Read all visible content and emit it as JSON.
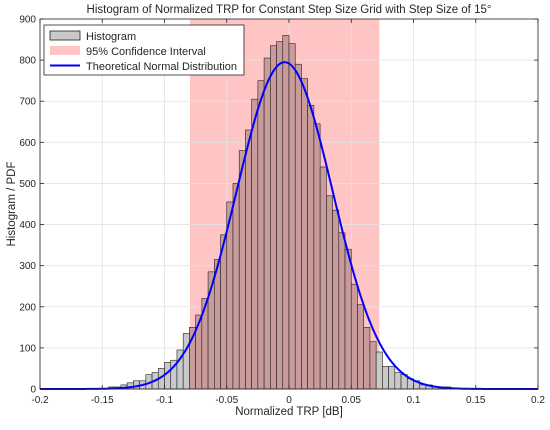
{
  "chart_data": {
    "type": "bar",
    "title": "Histogram of Normalized TRP for Constant Step Size Grid with Step Size of 15°",
    "xlabel": "Normalized TRP [dB]",
    "ylabel": "Histogram / PDF",
    "xlim": [
      -0.2,
      0.2
    ],
    "ylim": [
      0,
      900
    ],
    "xticks": [
      -0.2,
      -0.15,
      -0.1,
      -0.05,
      0,
      0.05,
      0.1,
      0.15,
      0.2
    ],
    "yticks": [
      0,
      100,
      200,
      300,
      400,
      500,
      600,
      700,
      800,
      900
    ],
    "xtick_labels": [
      "-0.2",
      "-0.15",
      "-0.1",
      "-0.05",
      "0",
      "0.05",
      "0.1",
      "0.15",
      "0.2"
    ],
    "ytick_labels": [
      "0",
      "100",
      "200",
      "300",
      "400",
      "500",
      "600",
      "700",
      "800",
      "900"
    ],
    "grid": true,
    "legend_position": "top-left",
    "legend": [
      {
        "label": "Histogram",
        "kind": "patch",
        "color": "#c9c9c9"
      },
      {
        "label": "95% Confidence Interval",
        "kind": "patch",
        "color": "#ffc4c4"
      },
      {
        "label": "Theoretical Normal Distribution",
        "kind": "line",
        "color": "#0000ff"
      }
    ],
    "confidence_interval": [
      -0.0795,
      0.0725
    ],
    "histogram": {
      "bin_width": 0.005,
      "bin_centers": [
        -0.1425,
        -0.1375,
        -0.1325,
        -0.1275,
        -0.1225,
        -0.1175,
        -0.1125,
        -0.1075,
        -0.1025,
        -0.0975,
        -0.0925,
        -0.0875,
        -0.0825,
        -0.0775,
        -0.0725,
        -0.0675,
        -0.0625,
        -0.0575,
        -0.0525,
        -0.0475,
        -0.0425,
        -0.0375,
        -0.0325,
        -0.0275,
        -0.0225,
        -0.0175,
        -0.0125,
        -0.0075,
        -0.0025,
        0.0025,
        0.0075,
        0.0125,
        0.0175,
        0.0225,
        0.0275,
        0.0325,
        0.0375,
        0.0425,
        0.0475,
        0.0525,
        0.0575,
        0.0625,
        0.0675,
        0.0725,
        0.0775,
        0.0825,
        0.0875,
        0.0925,
        0.0975,
        0.1025,
        0.1075,
        0.1125,
        0.1175,
        0.1225,
        0.1275
      ],
      "counts": [
        5,
        5,
        10,
        15,
        20,
        20,
        35,
        40,
        50,
        65,
        70,
        95,
        135,
        150,
        180,
        220,
        285,
        315,
        375,
        455,
        500,
        580,
        630,
        705,
        750,
        805,
        835,
        845,
        860,
        840,
        790,
        755,
        690,
        645,
        540,
        470,
        435,
        380,
        340,
        255,
        205,
        150,
        115,
        90,
        55,
        55,
        40,
        35,
        25,
        20,
        10,
        10,
        5,
        5,
        5
      ]
    },
    "normal_curve": {
      "mean": -0.0035,
      "std": 0.0385,
      "peak": 795,
      "x_range": [
        -0.2,
        0.2
      ]
    }
  },
  "colors": {
    "bar_fill": "#c9c9c9",
    "bar_in_ci_fill": "#c99b9b",
    "bar_edge": "#222222",
    "ci_fill": "#ffc4c4",
    "curve": "#0000ff",
    "grid": "#e2e2e2",
    "axis": "#262626"
  }
}
